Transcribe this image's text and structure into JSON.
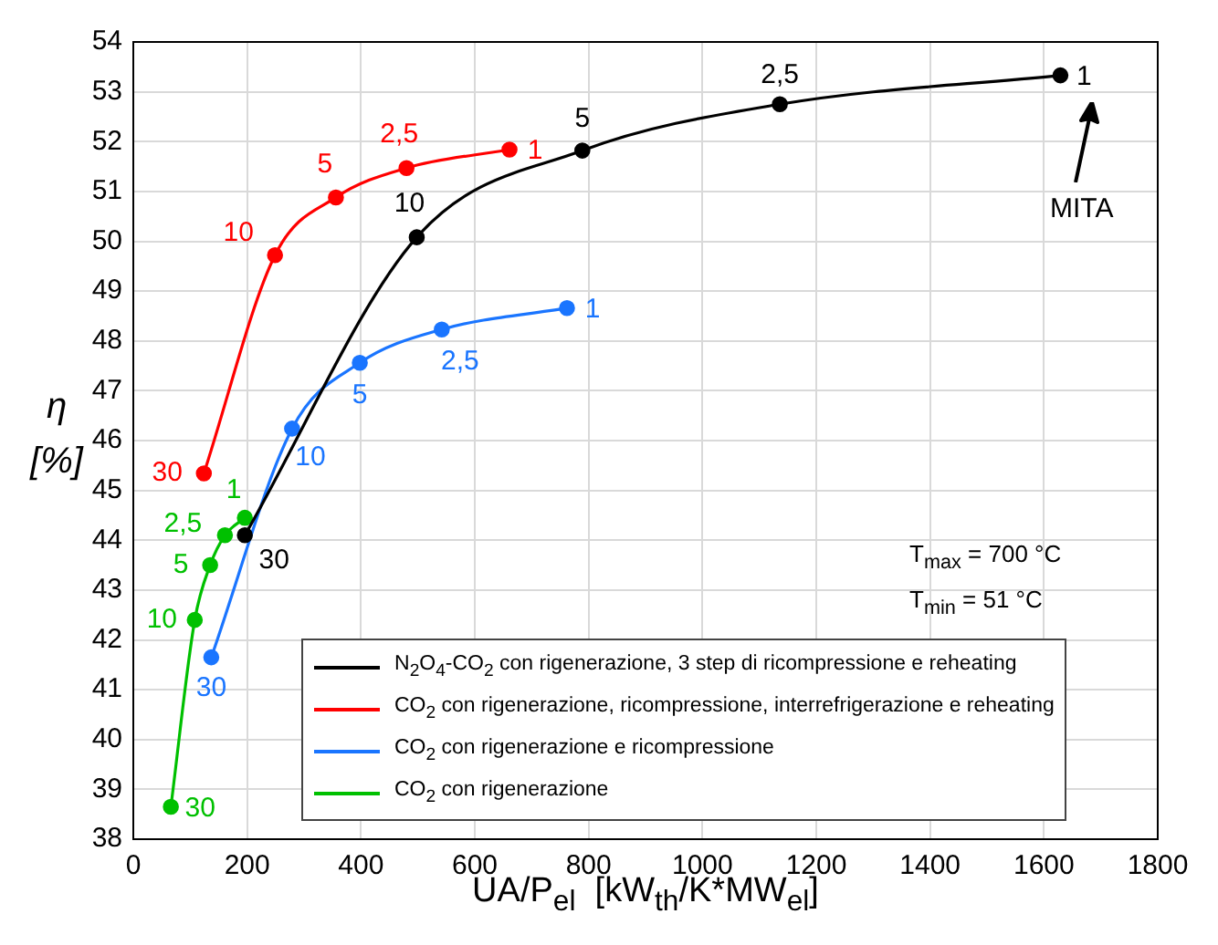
{
  "chart_data": {
    "type": "line",
    "xlabel": "UA/P$_{el}$  [kW$_{th}$/K*MW$_{el}$]",
    "ylabel": "η [%]",
    "xlim": [
      0,
      1800
    ],
    "xticks": [
      0,
      200,
      400,
      600,
      800,
      1000,
      1200,
      1400,
      1600,
      1800
    ],
    "ylim": [
      38,
      54
    ],
    "yticks": [
      38,
      39,
      40,
      41,
      42,
      43,
      44,
      45,
      46,
      47,
      48,
      49,
      50,
      51,
      52,
      53,
      54
    ],
    "grid": true,
    "legend": "bottom right",
    "marker": "circle",
    "line_style": "solid",
    "series": [
      {
        "name": "N$_{2}$O$_{4}$-CO$_{2}$ con rigenerazione, 3 step di ricompressione e reheating",
        "color": "#000000",
        "x": [
          196,
          498,
          789,
          1136,
          1629
        ],
        "values": [
          44.1,
          50.08,
          51.82,
          52.75,
          53.33
        ]
      },
      {
        "name": "CO$_{2}$ con rigenerazione, ricompressione, interrefrigerazione e reheating",
        "color": "#ff0000",
        "x": [
          124,
          249,
          356,
          480,
          661
        ],
        "values": [
          45.34,
          49.72,
          50.88,
          51.47,
          51.84
        ]
      },
      {
        "name": "CO$_{2}$ con rigenerazione e ricompressione",
        "color": "#1a75ff",
        "x": [
          137,
          279,
          398,
          542,
          762
        ],
        "values": [
          41.65,
          46.24,
          47.56,
          48.23,
          48.66
        ]
      },
      {
        "name": "CO$_{2}$ con rigenerazione",
        "color": "#00c000",
        "x": [
          66,
          108,
          135,
          161,
          196
        ],
        "values": [
          38.65,
          42.4,
          43.5,
          44.1,
          44.45
        ]
      }
    ],
    "annotations": [
      {
        "text": "30",
        "x": 196,
        "y": 44.1
      },
      {
        "text": "10",
        "x": 498,
        "y": 50.08
      },
      {
        "text": "5",
        "x": 789,
        "y": 51.82
      },
      {
        "text": "2,5",
        "x": 1136,
        "y": 52.75
      },
      {
        "text": "1",
        "x": 1629,
        "y": 53.33
      },
      {
        "text": "30",
        "x": 124,
        "y": 45.34
      },
      {
        "text": "10",
        "x": 249,
        "y": 49.72
      },
      {
        "text": "5",
        "x": 356,
        "y": 50.88
      },
      {
        "text": "2,5",
        "x": 480,
        "y": 51.47
      },
      {
        "text": "1",
        "x": 661,
        "y": 51.84
      },
      {
        "text": "30",
        "x": 137,
        "y": 41.65
      },
      {
        "text": "10",
        "x": 279,
        "y": 46.24
      },
      {
        "text": "5",
        "x": 398,
        "y": 47.56
      },
      {
        "text": "2,5",
        "x": 542,
        "y": 48.23
      },
      {
        "text": "1",
        "x": 762,
        "y": 48.66
      },
      {
        "text": "30",
        "x": 66,
        "y": 38.65
      },
      {
        "text": "10",
        "x": 108,
        "y": 42.4
      },
      {
        "text": "5",
        "x": 135,
        "y": 43.5
      },
      {
        "text": "2,5",
        "x": 161,
        "y": 44.1
      },
      {
        "text": "1",
        "x": 196,
        "y": 44.45
      },
      "MITA",
      "T$_{max}$ = 700 °C",
      "T$_{min}$ = 51 °C"
    ]
  }
}
